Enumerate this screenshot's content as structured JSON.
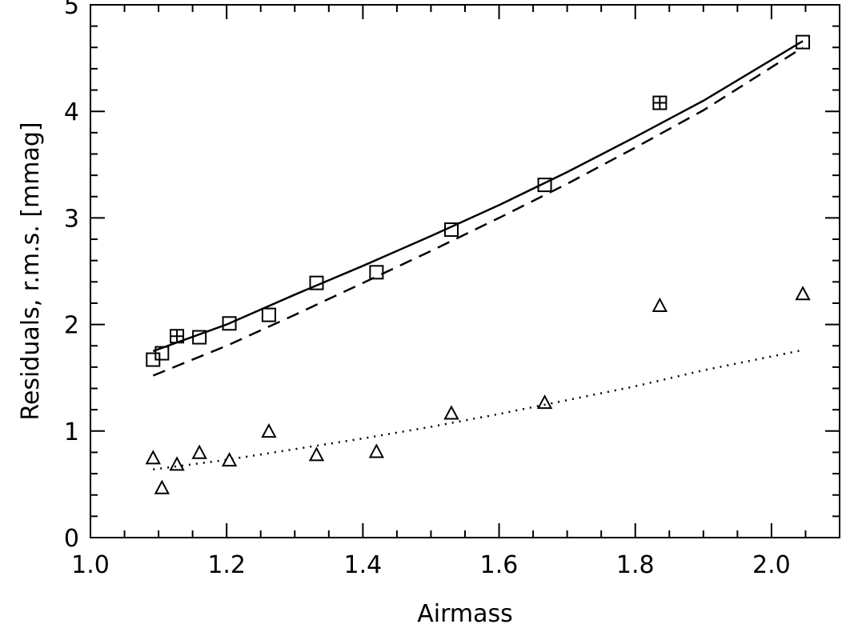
{
  "chart_data": {
    "type": "scatter",
    "title": "",
    "xlabel": "Airmass",
    "ylabel": "Residuals,  r.m.s.  [mmag]",
    "xlim": [
      1.0,
      2.1
    ],
    "ylim": [
      0,
      5
    ],
    "xticks": [
      1.0,
      1.2,
      1.4,
      1.6,
      1.8,
      2.0
    ],
    "xtick_labels": [
      "1.0",
      "1.2",
      "1.4",
      "1.6",
      "1.8",
      "2.0"
    ],
    "yticks": [
      0,
      1,
      2,
      3,
      4,
      5
    ],
    "ytick_labels": [
      "0",
      "1",
      "2",
      "3",
      "4",
      "5"
    ],
    "x_minor_step": 0.05,
    "y_minor_step": 0.2,
    "grid": false,
    "legend": "none",
    "series": [
      {
        "marker": "square",
        "points": [
          {
            "x": 1.092,
            "y": 1.67,
            "crossed": false
          },
          {
            "x": 1.105,
            "y": 1.73,
            "crossed": false
          },
          {
            "x": 1.127,
            "y": 1.89,
            "crossed": true
          },
          {
            "x": 1.16,
            "y": 1.88,
            "crossed": false
          },
          {
            "x": 1.204,
            "y": 2.01,
            "crossed": false
          },
          {
            "x": 1.262,
            "y": 2.09,
            "crossed": false
          },
          {
            "x": 1.332,
            "y": 2.39,
            "crossed": false
          },
          {
            "x": 1.42,
            "y": 2.49,
            "crossed": false
          },
          {
            "x": 1.53,
            "y": 2.89,
            "crossed": false
          },
          {
            "x": 1.667,
            "y": 3.31,
            "crossed": false
          },
          {
            "x": 1.836,
            "y": 4.08,
            "crossed": true
          },
          {
            "x": 2.046,
            "y": 4.65,
            "crossed": false
          }
        ]
      },
      {
        "marker": "triangle",
        "points": [
          {
            "x": 1.092,
            "y": 0.74
          },
          {
            "x": 1.105,
            "y": 0.46
          },
          {
            "x": 1.127,
            "y": 0.68
          },
          {
            "x": 1.16,
            "y": 0.79
          },
          {
            "x": 1.204,
            "y": 0.72
          },
          {
            "x": 1.262,
            "y": 0.99
          },
          {
            "x": 1.332,
            "y": 0.77
          },
          {
            "x": 1.42,
            "y": 0.8
          },
          {
            "x": 1.53,
            "y": 1.16
          },
          {
            "x": 1.667,
            "y": 1.26
          },
          {
            "x": 1.836,
            "y": 2.17
          },
          {
            "x": 2.046,
            "y": 2.28
          }
        ]
      }
    ],
    "curves": [
      {
        "style": "solid",
        "x": [
          1.092,
          1.2,
          1.3,
          1.4,
          1.5,
          1.6,
          1.7,
          1.8,
          1.9,
          2.046
        ],
        "y": [
          1.75,
          2.0,
          2.28,
          2.55,
          2.83,
          3.12,
          3.43,
          3.76,
          4.1,
          4.66
        ]
      },
      {
        "style": "dashed",
        "x": [
          1.092,
          1.2,
          1.3,
          1.4,
          1.5,
          1.6,
          1.7,
          1.8,
          1.9,
          2.046
        ],
        "y": [
          1.52,
          1.8,
          2.09,
          2.39,
          2.69,
          3.0,
          3.32,
          3.66,
          4.01,
          4.6
        ]
      },
      {
        "style": "dotted",
        "x": [
          1.092,
          1.2,
          1.3,
          1.4,
          1.5,
          1.6,
          1.7,
          1.8,
          1.9,
          2.046
        ],
        "y": [
          0.64,
          0.73,
          0.83,
          0.93,
          1.04,
          1.16,
          1.29,
          1.42,
          1.57,
          1.76
        ]
      }
    ]
  }
}
